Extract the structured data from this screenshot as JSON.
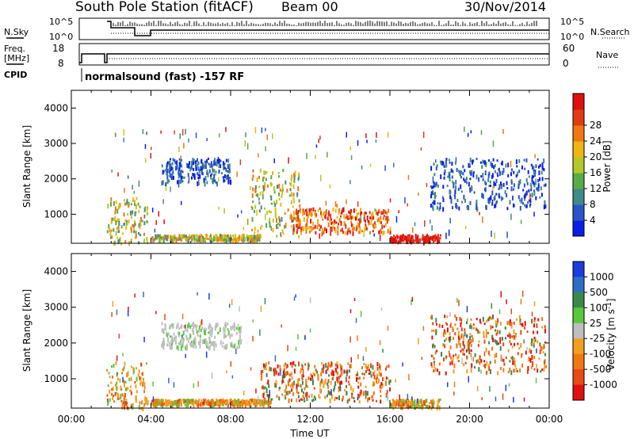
{
  "header": {
    "station": "South Pole Station (fitACF)",
    "beam": "Beam 00",
    "date": "30/Nov/2014"
  },
  "param_panels": {
    "nsky_label": "N.Sky",
    "nsearch_label": "N.Search",
    "nsky_ticks": [
      "10^5",
      "10^0"
    ],
    "nsearch_ticks": [
      "10^5",
      "10^0"
    ],
    "freq_label_1": "Freq.",
    "freq_label_2": "[MHz]",
    "freq_ticks": [
      "18",
      "8"
    ],
    "nave_label": "Nave",
    "nave_ticks": [
      "60",
      "0"
    ],
    "cpid_label": "CPID",
    "cpid_text": "normalsound (fast) -157 RF"
  },
  "chart_data": [
    {
      "type": "heatmap",
      "title": "",
      "xlabel": "",
      "ylabel": "Slant Range [km]",
      "xlim": [
        "00:00",
        "24:00"
      ],
      "ylim": [
        180,
        4500
      ],
      "y_ticks": [
        "1000",
        "2000",
        "3000",
        "4000"
      ],
      "colorbar": {
        "label": "Power [dB]",
        "ticks": [
          "4",
          "8",
          "12",
          "16",
          "20",
          "24",
          "28"
        ],
        "colors": [
          "#0a1ee6",
          "#2a55c8",
          "#3f8a88",
          "#5aaa4a",
          "#b4c82a",
          "#f0b414",
          "#f07814",
          "#e03c14",
          "#e01010"
        ]
      },
      "echo_regions": [
        {
          "t_start": "01:45",
          "t_end": "03:50",
          "range_min": 200,
          "range_max": 1500,
          "level": "mid"
        },
        {
          "t_start": "04:00",
          "t_end": "09:30",
          "range_min": 300,
          "range_max": 450,
          "level": "mid"
        },
        {
          "t_start": "04:30",
          "t_end": "08:00",
          "range_min": 1900,
          "range_max": 2600,
          "level": "low"
        },
        {
          "t_start": "09:00",
          "t_end": "11:30",
          "range_min": 400,
          "range_max": 2300,
          "level": "mid"
        },
        {
          "t_start": "11:00",
          "t_end": "16:00",
          "range_min": 500,
          "range_max": 1200,
          "level": "high"
        },
        {
          "t_start": "16:00",
          "t_end": "18:30",
          "range_min": 250,
          "range_max": 450,
          "level": "max"
        },
        {
          "t_start": "18:00",
          "t_end": "23:50",
          "range_min": 1200,
          "range_max": 2600,
          "level": "low"
        }
      ]
    },
    {
      "type": "heatmap",
      "title": "",
      "xlabel": "Time UT",
      "ylabel": "Slant Range [km]",
      "xlim": [
        "00:00",
        "24:00"
      ],
      "ylim": [
        180,
        4500
      ],
      "x_ticks": [
        "00:00",
        "04:00",
        "08:00",
        "12:00",
        "16:00",
        "20:00",
        "00:00"
      ],
      "y_ticks": [
        "1000",
        "2000",
        "3000",
        "4000"
      ],
      "colorbar": {
        "label": "Velocity [m s^-1]",
        "label_main": "Velocity [m s",
        "label_sup": "-1",
        "label_end": "]",
        "ticks": [
          "1000",
          "500",
          "100",
          "25",
          "-25",
          "-100",
          "-500",
          "-1000"
        ],
        "colors": [
          "#1a3ce0",
          "#2f6ec4",
          "#3c8a4a",
          "#5ac83c",
          "#bebebe",
          "#f0a020",
          "#f07814",
          "#e84a14",
          "#e01010"
        ]
      },
      "echo_regions": [
        {
          "t_start": "01:45",
          "t_end": "03:50",
          "range_min": 200,
          "range_max": 1500,
          "level": "toward"
        },
        {
          "t_start": "04:00",
          "t_end": "10:00",
          "range_min": 300,
          "range_max": 450,
          "level": "toward"
        },
        {
          "t_start": "04:30",
          "t_end": "08:30",
          "range_min": 1900,
          "range_max": 2600,
          "level": "ground"
        },
        {
          "t_start": "09:30",
          "t_end": "16:00",
          "range_min": 400,
          "range_max": 1500,
          "level": "away"
        },
        {
          "t_start": "16:00",
          "t_end": "18:30",
          "range_min": 250,
          "range_max": 450,
          "level": "toward"
        },
        {
          "t_start": "18:00",
          "t_end": "23:50",
          "range_min": 1200,
          "range_max": 2800,
          "level": "away"
        }
      ]
    }
  ]
}
